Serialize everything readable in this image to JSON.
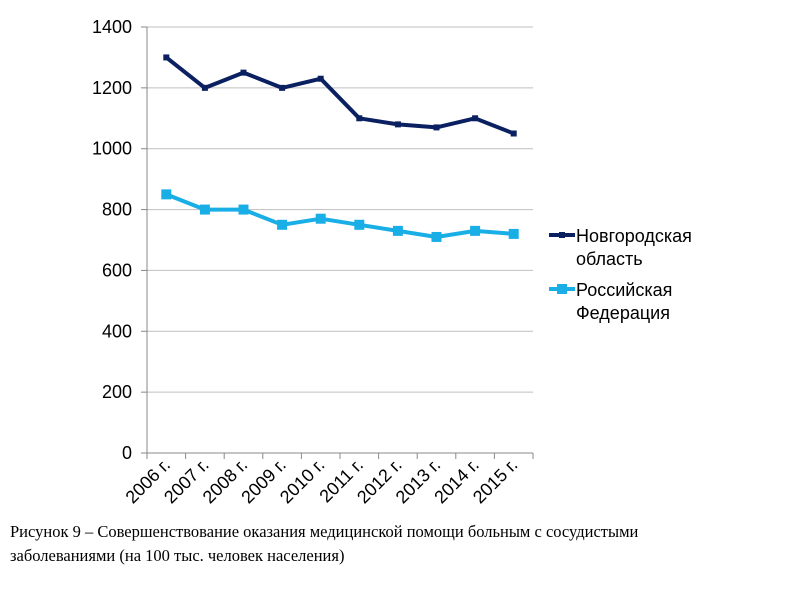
{
  "chart_data": {
    "type": "line",
    "categories": [
      "2006 г.",
      "2007 г.",
      "2008 г.",
      "2009 г.",
      "2010 г.",
      "2011 г.",
      "2012 г.",
      "2013 г.",
      "2014 г.",
      "2015 г."
    ],
    "series": [
      {
        "name_lines": [
          "Новгородская",
          "область"
        ],
        "values": [
          1300,
          1200,
          1250,
          1200,
          1230,
          1100,
          1080,
          1070,
          1100,
          1050
        ],
        "color": "#0b2060",
        "marker": "square"
      },
      {
        "name_lines": [
          "Российская",
          "Федерация"
        ],
        "values": [
          850,
          800,
          800,
          750,
          770,
          750,
          730,
          710,
          730,
          720
        ],
        "color": "#1aaee6",
        "marker": "square"
      }
    ],
    "yticks": [
      0,
      200,
      400,
      600,
      800,
      1000,
      1200,
      1400
    ],
    "ylim": [
      0,
      1400
    ],
    "grid": true,
    "legend": "right"
  },
  "caption": {
    "line1": "Рисунок 9 – Совершенствование оказания медицинской помощи больным с сосудистыми",
    "line2": "заболеваниями (на 100 тыс. человек населения)"
  }
}
